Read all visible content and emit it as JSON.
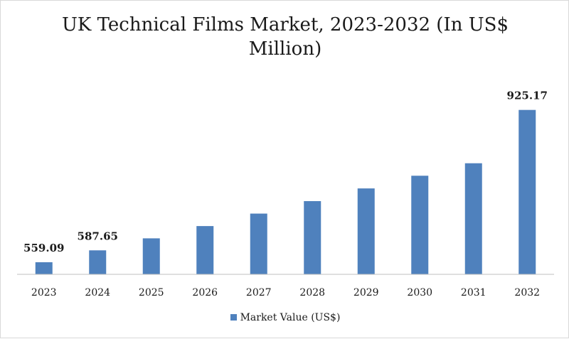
{
  "chart_data": {
    "type": "bar",
    "title": "UK Technical Films Market, 2023-2032 (In US$ Million)",
    "xlabel": "",
    "ylabel": "",
    "categories": [
      "2023",
      "2024",
      "2025",
      "2026",
      "2027",
      "2028",
      "2029",
      "2030",
      "2031",
      "2032"
    ],
    "series": [
      {
        "name": "Market Value (US$)",
        "values": [
          559.09,
          587.65,
          616.5,
          646.0,
          676.0,
          706.0,
          736.5,
          767.0,
          797.0,
          925.17
        ],
        "color": "#4f81bd"
      }
    ],
    "data_labels": [
      {
        "index": 0,
        "text": "559.09"
      },
      {
        "index": 1,
        "text": "587.65"
      },
      {
        "index": 9,
        "text": "925.17"
      }
    ],
    "ylim": [
      530,
      940
    ],
    "grid": false,
    "legend_position": "bottom"
  }
}
